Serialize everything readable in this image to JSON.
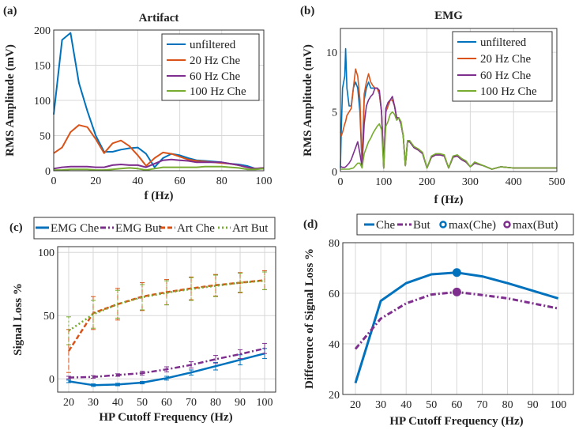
{
  "colors": {
    "blue": "#0072BD",
    "orange": "#D95319",
    "purple": "#7E2F8E",
    "green": "#77AC30"
  },
  "chart_data": [
    {
      "panel_label": "(a)",
      "type": "line",
      "title": "Artifact",
      "xlabel": "f (Hz)",
      "ylabel": "RMS Amplitude (mV)",
      "xlim": [
        0,
        100
      ],
      "ylim": [
        0,
        200
      ],
      "xticks": [
        "0",
        "20",
        "40",
        "60",
        "80",
        "100"
      ],
      "yticks": [
        "0",
        "50",
        "100",
        "150",
        "200"
      ],
      "grid": true,
      "legend": "top-right",
      "x": [
        0,
        4,
        8,
        12,
        16,
        20,
        24,
        28,
        32,
        36,
        40,
        44,
        48,
        52,
        56,
        60,
        64,
        68,
        72,
        76,
        80,
        84,
        88,
        92,
        96,
        100
      ],
      "series": [
        {
          "name": "unfiltered",
          "color": "#0072BD",
          "values": [
            80,
            186,
            196,
            125,
            85,
            50,
            27,
            27,
            30,
            32,
            33,
            24,
            5,
            18,
            24,
            22,
            18,
            15,
            14,
            13,
            12,
            10,
            9,
            7,
            3,
            3
          ]
        },
        {
          "name": "20 Hz Che",
          "color": "#D95319",
          "values": [
            25,
            33,
            55,
            65,
            62,
            45,
            25,
            39,
            43,
            35,
            22,
            7,
            18,
            26,
            24,
            20,
            16,
            14,
            13,
            12,
            11,
            10,
            8,
            5,
            3,
            4
          ]
        },
        {
          "name": "60 Hz Che",
          "color": "#7E2F8E",
          "values": [
            3,
            5,
            6,
            6,
            6,
            5,
            5,
            8,
            9,
            8,
            8,
            5,
            10,
            15,
            16,
            15,
            14,
            12,
            12,
            12,
            12,
            10,
            8,
            5,
            3,
            4
          ]
        },
        {
          "name": "100 Hz Che",
          "color": "#77AC30",
          "values": [
            1,
            1,
            2,
            2,
            2,
            1,
            1,
            2,
            3,
            4,
            3,
            1,
            3,
            5,
            5,
            5,
            5,
            5,
            6,
            6,
            6,
            5,
            4,
            2,
            2,
            3
          ]
        }
      ]
    },
    {
      "panel_label": "(b)",
      "type": "line",
      "title": "EMG",
      "xlabel": "f (Hz)",
      "ylabel": "RMS Amplitude (mV)",
      "xlim": [
        0,
        500
      ],
      "ylim": [
        0,
        12
      ],
      "xticks": [
        "0",
        "100",
        "200",
        "300",
        "400",
        "500"
      ],
      "yticks": [
        "0",
        "5",
        "10"
      ],
      "ytick_values": [
        0,
        5,
        10
      ],
      "grid": true,
      "legend": "top-right",
      "x": [
        0,
        2,
        5,
        10,
        12,
        15,
        20,
        25,
        30,
        35,
        40,
        45,
        50,
        55,
        60,
        65,
        70,
        75,
        80,
        85,
        90,
        95,
        100,
        105,
        110,
        115,
        120,
        125,
        130,
        135,
        140,
        145,
        150,
        155,
        160,
        170,
        180,
        190,
        200,
        210,
        220,
        230,
        240,
        250,
        260,
        270,
        280,
        290,
        300,
        310,
        330,
        350,
        370,
        400,
        450,
        500
      ],
      "series": [
        {
          "name": "unfiltered",
          "color": "#0072BD",
          "values": [
            0.3,
            3.5,
            7,
            8,
            10.3,
            7,
            5.5,
            5.5,
            7,
            7.5,
            7,
            5,
            0.5,
            6,
            7,
            7.5,
            7,
            7,
            7,
            7,
            6.5,
            5,
            0.3,
            5,
            5.5,
            6,
            6,
            5.5,
            4.5,
            4.5,
            4,
            3,
            0.5,
            2.5,
            2.5,
            2,
            1.8,
            1.5,
            0.3,
            1.2,
            1.4,
            1.4,
            1.3,
            0.3,
            1.2,
            1.3,
            1,
            0.8,
            0.4,
            0.7,
            0.5,
            0.2,
            0.4,
            0.3,
            0.3,
            0.3
          ]
        },
        {
          "name": "20 Hz Che",
          "color": "#D95319",
          "values": [
            3.3,
            3,
            3.3,
            4,
            4.2,
            4.7,
            5,
            5.3,
            7,
            8.6,
            8,
            6,
            0.5,
            6.5,
            7.5,
            8.2,
            7.5,
            7.2,
            7,
            7,
            6.5,
            5,
            0.3,
            5,
            5.5,
            6,
            6,
            5.5,
            4.5,
            4.5,
            4,
            3,
            0.5,
            2.5,
            2.5,
            2,
            1.8,
            1.5,
            0.3,
            1.2,
            1.4,
            1.4,
            1.3,
            0.3,
            1.2,
            1.3,
            1,
            0.8,
            0.4,
            0.7,
            0.5,
            0.2,
            0.4,
            0.3,
            0.3,
            0.3
          ]
        },
        {
          "name": "60 Hz Che",
          "color": "#7E2F8E",
          "values": [
            0.4,
            0.4,
            0.35,
            0.35,
            0.4,
            0.5,
            0.7,
            1,
            1.5,
            2,
            2.5,
            1.5,
            0.4,
            4,
            5.5,
            6,
            6.3,
            6.5,
            7,
            7,
            6.8,
            5,
            0.3,
            5.3,
            5.8,
            6,
            6.3,
            5.5,
            4.5,
            4.5,
            4,
            3,
            0.5,
            2.5,
            2.5,
            2,
            1.8,
            1.5,
            0.3,
            1.2,
            1.4,
            1.4,
            1.3,
            0.3,
            1.2,
            1.3,
            1,
            0.8,
            0.4,
            0.7,
            0.5,
            0.2,
            0.4,
            0.3,
            0.3,
            0.3
          ]
        },
        {
          "name": "100 Hz Che",
          "color": "#77AC30",
          "values": [
            0.2,
            0.2,
            0.2,
            0.2,
            0.2,
            0.2,
            0.2,
            0.25,
            0.3,
            0.5,
            0.7,
            0.7,
            0.3,
            1.5,
            2,
            2.5,
            2.8,
            3.2,
            3.5,
            3.8,
            4,
            3.5,
            0.3,
            3.8,
            4.2,
            4.8,
            5,
            4.8,
            4.3,
            4.5,
            4.2,
            3,
            0.5,
            2.6,
            2.6,
            2.1,
            1.9,
            1.6,
            0.3,
            1.3,
            1.5,
            1.5,
            1.4,
            0.3,
            1.3,
            1.4,
            1.1,
            0.9,
            0.4,
            0.8,
            0.5,
            0.2,
            0.4,
            0.3,
            0.3,
            0.3
          ]
        }
      ]
    },
    {
      "panel_label": "(c)",
      "type": "line",
      "xlabel": "HP Cutoff Frequency (Hz)",
      "ylabel": "Signal Loss %",
      "xlim": [
        15.5,
        104.5
      ],
      "ylim": [
        -10.5,
        104.5
      ],
      "xticks": [
        "20",
        "30",
        "40",
        "50",
        "60",
        "70",
        "80",
        "90",
        "100"
      ],
      "yticks": [
        "0",
        "50",
        "100"
      ],
      "ytick_values": [
        0,
        50,
        100
      ],
      "grid": true,
      "legend": "top (outside)",
      "x": [
        20,
        30,
        40,
        50,
        60,
        70,
        80,
        90,
        100
      ],
      "series": [
        {
          "name": "EMG Che",
          "color": "#0072BD",
          "style": "solid",
          "values": [
            -2,
            -5,
            -4.5,
            -3,
            0.5,
            5,
            10,
            15,
            20
          ],
          "errors": [
            1,
            1,
            1,
            1,
            1.5,
            2,
            3,
            4,
            4
          ]
        },
        {
          "name": "EMG But",
          "color": "#7E2F8E",
          "style": "dashdot",
          "values": [
            1,
            1.5,
            3,
            4.5,
            7.5,
            11,
            15.5,
            19.5,
            24
          ],
          "errors": [
            1,
            1,
            1,
            1.5,
            2,
            2.5,
            3,
            3.5,
            4
          ]
        },
        {
          "name": "Art Che",
          "color": "#D95319",
          "style": "dashed",
          "values": [
            22,
            52,
            59,
            65,
            68.5,
            71.5,
            74,
            76,
            78
          ],
          "errors": [
            17,
            13,
            12.5,
            11,
            10,
            9,
            8.5,
            8,
            7.5
          ]
        },
        {
          "name": "Art But",
          "color": "#77AC30",
          "style": "dotted",
          "values": [
            38,
            51,
            59,
            64.5,
            68,
            71,
            73.5,
            76,
            77.5
          ],
          "errors": [
            11,
            11,
            11,
            10,
            9.5,
            9,
            8.5,
            7.5,
            7
          ]
        }
      ]
    },
    {
      "panel_label": "(d)",
      "type": "line",
      "xlabel": "HP Cutoff Frequency (Hz)",
      "ylabel": "Difference of Signal Loss %",
      "xlim": [
        15,
        106
      ],
      "ylim": [
        20,
        80
      ],
      "xticks": [
        "20",
        "30",
        "40",
        "50",
        "60",
        "70",
        "80",
        "90",
        "100"
      ],
      "yticks": [
        "20",
        "40",
        "60",
        "80"
      ],
      "ytick_values": [
        20,
        40,
        60,
        80
      ],
      "grid": true,
      "legend": "top (outside)",
      "x": [
        20,
        30,
        40,
        50,
        60,
        70,
        80,
        90,
        100
      ],
      "series": [
        {
          "name": "Che",
          "color": "#0072BD",
          "style": "solid",
          "values": [
            24.5,
            57,
            64,
            67.5,
            68.2,
            66.7,
            64,
            61,
            58
          ]
        },
        {
          "name": "But",
          "color": "#7E2F8E",
          "style": "dashdot",
          "values": [
            38,
            50,
            56,
            59.5,
            60.5,
            59.3,
            58,
            56,
            54
          ]
        }
      ],
      "markers": [
        {
          "name": "max(Che)",
          "color": "#0072BD",
          "x": 60,
          "y": 68.2
        },
        {
          "name": "max(But)",
          "color": "#7E2F8E",
          "x": 60,
          "y": 60.5
        }
      ]
    }
  ]
}
